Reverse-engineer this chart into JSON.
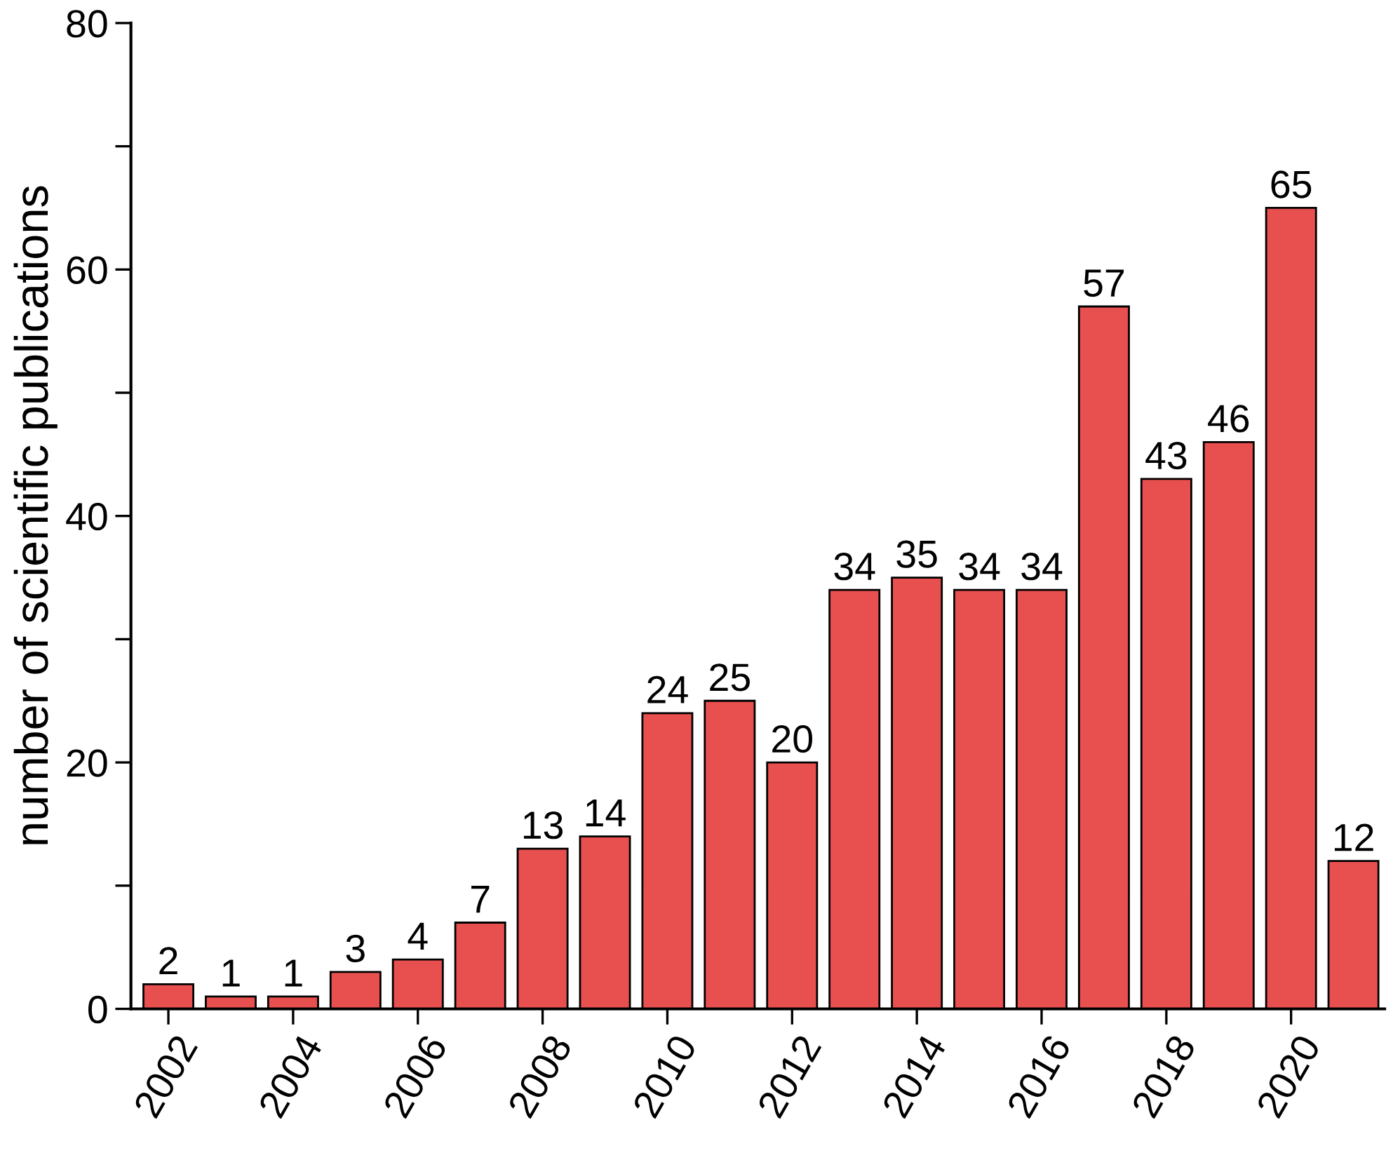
{
  "chart_data": {
    "type": "bar",
    "ylabel": "number of scientific publications",
    "x": [
      2002,
      2003,
      2004,
      2005,
      2006,
      2007,
      2008,
      2009,
      2010,
      2011,
      2012,
      2013,
      2014,
      2015,
      2016,
      2017,
      2018,
      2019,
      2020,
      2021
    ],
    "values": [
      2,
      1,
      1,
      3,
      4,
      7,
      13,
      14,
      24,
      25,
      20,
      34,
      35,
      34,
      34,
      57,
      43,
      46,
      65,
      12
    ],
    "color": "#e85050",
    "xlim": [
      2001.4,
      2021.5
    ],
    "xticks": [
      2002,
      2004,
      2006,
      2008,
      2010,
      2012,
      2014,
      2016,
      2018,
      2020
    ],
    "ylim": [
      0,
      80
    ],
    "yticks": [
      0,
      {
        "value": 10,
        "label": null
      },
      20,
      {
        "value": 30,
        "label": null
      },
      40,
      {
        "value": 50,
        "label": null
      },
      60,
      {
        "value": 70,
        "label": null
      },
      80
    ],
    "data_labels": true,
    "grid": false,
    "legend": false
  }
}
